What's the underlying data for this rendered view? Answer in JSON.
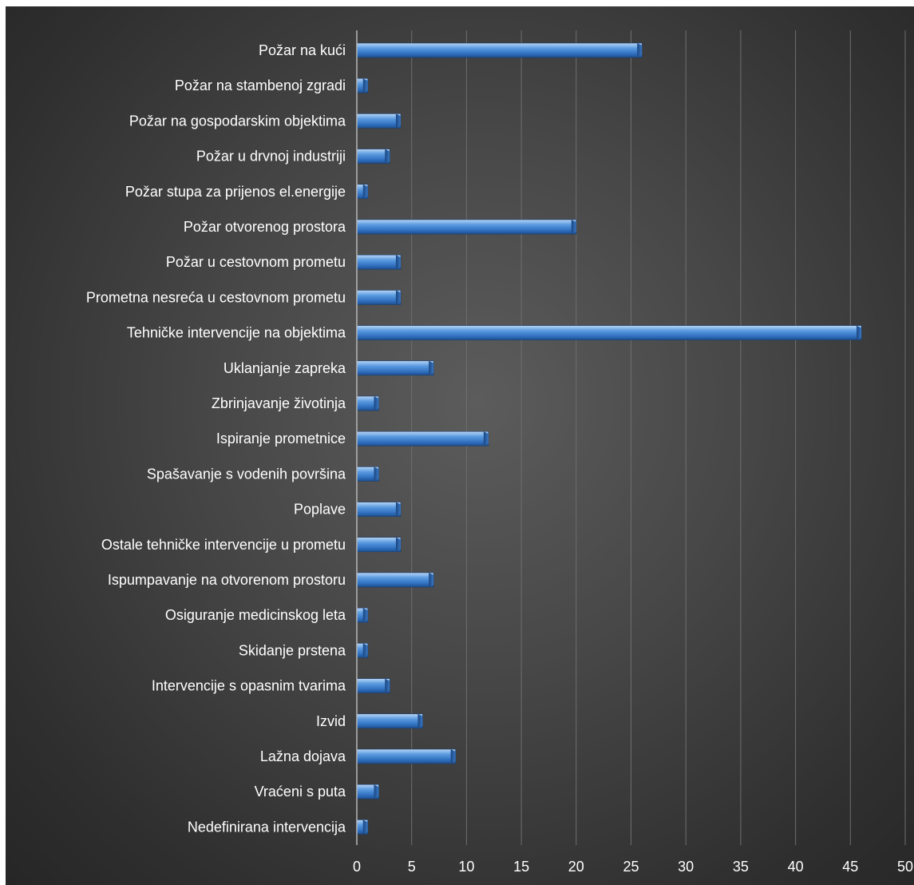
{
  "chart_data": {
    "type": "bar",
    "orientation": "horizontal",
    "title": "",
    "xlabel": "",
    "ylabel": "",
    "xlim": [
      0,
      50
    ],
    "x_ticks": [
      0,
      5,
      10,
      15,
      20,
      25,
      30,
      35,
      40,
      45,
      50
    ],
    "grid": "vertical",
    "legend": "none",
    "bar_color": "#4f8fd6",
    "background_color": "#3a3a3a",
    "categories": [
      "Požar na kući",
      "Požar na stambenoj zgradi",
      "Požar na gospodarskim objektima",
      "Požar u drvnoj industriji",
      "Požar stupa za prijenos el.energije",
      "Požar otvorenog prostora",
      "Požar u cestovnom prometu",
      "Prometna nesreća u cestovnom prometu",
      "Tehničke intervencije na objektima",
      "Uklanjanje zapreka",
      "Zbrinjavanje životinja",
      "Ispiranje prometnice",
      "Spašavanje s vodenih površina",
      "Poplave",
      "Ostale tehničke intervencije u prometu",
      "Ispumpavanje na otvorenom prostoru",
      "Osiguranje medicinskog leta",
      "Skidanje prstena",
      "Intervencije s opasnim tvarima",
      "Izvid",
      "Lažna dojava",
      "Vraćeni s puta",
      "Nedefinirana intervencija"
    ],
    "values": [
      26,
      1,
      4,
      3,
      1,
      20,
      4,
      4,
      46,
      7,
      2,
      12,
      2,
      4,
      4,
      7,
      1,
      1,
      3,
      6,
      9,
      2,
      1
    ]
  }
}
